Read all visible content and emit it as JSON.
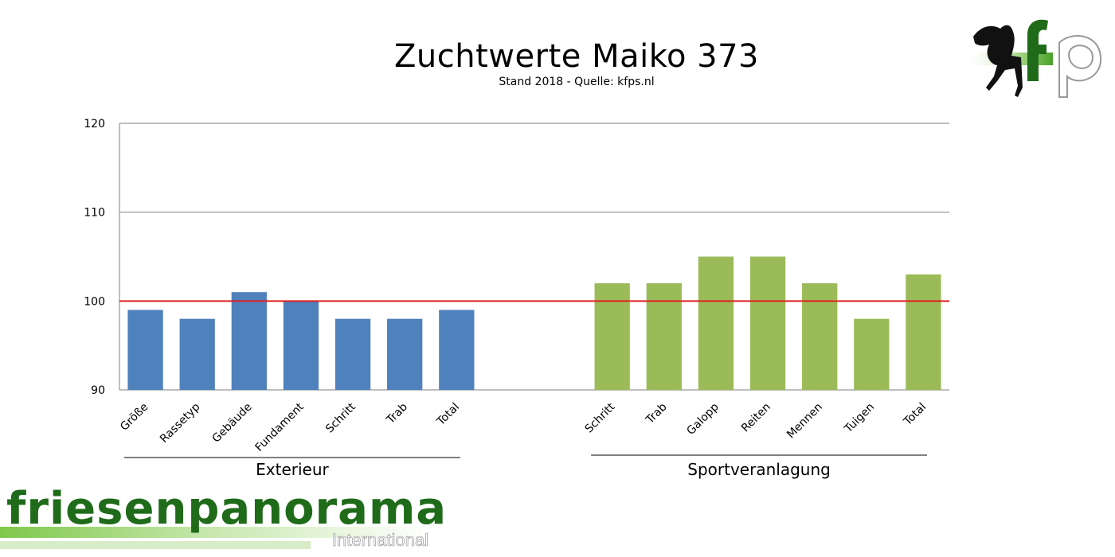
{
  "chart_data": {
    "type": "bar",
    "title": "Zuchtwerte Maiko 373",
    "subtitle": "Stand 2018 - Quelle: kfps.nl",
    "ylim": [
      90,
      120
    ],
    "yticks": [
      90,
      100,
      110,
      120
    ],
    "grid": true,
    "reference_line": {
      "value": 100,
      "color": "#e02020"
    },
    "groups": [
      {
        "name": "Exterieur",
        "color": "#4f81bd",
        "categories": [
          "Größe",
          "Rassetyp",
          "Gebäude",
          "Fundament",
          "Schritt",
          "Trab",
          "Total"
        ],
        "values": [
          99,
          98,
          101,
          100,
          98,
          98,
          99
        ]
      },
      {
        "name": "Sportveranlagung",
        "color": "#9bbb59",
        "categories": [
          "Schritt",
          "Trab",
          "Galopp",
          "Reiten",
          "Mennen",
          "Tuigen",
          "Total"
        ],
        "values": [
          102,
          102,
          105,
          105,
          102,
          98,
          103
        ]
      }
    ]
  },
  "logos": {
    "kfps": "kfps",
    "friesenpanorama": "friesenpanorama",
    "international": "International"
  }
}
